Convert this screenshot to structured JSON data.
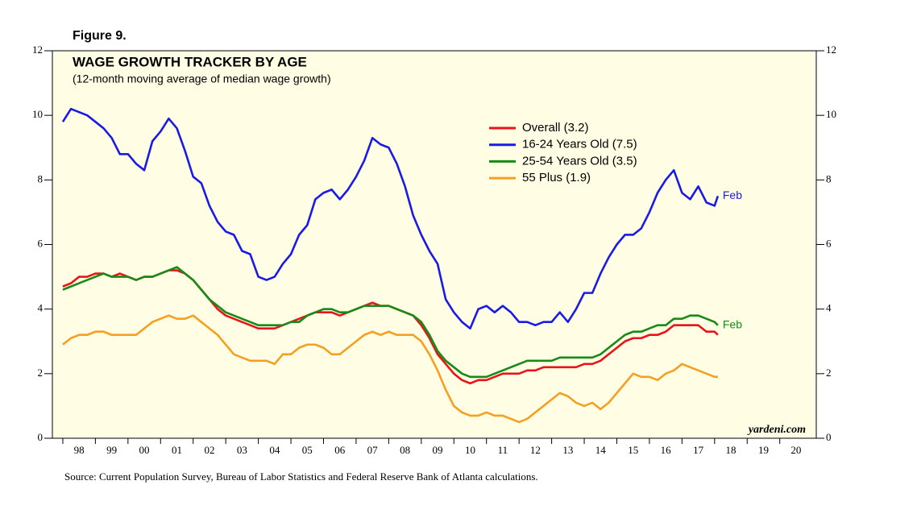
{
  "figure_label": "Figure 9.",
  "chart_data": {
    "type": "line",
    "title": "WAGE GROWTH TRACKER BY AGE",
    "subtitle": "(12-month moving average of median wage growth)",
    "watermark": "yardeni.com",
    "source": "Source: Current Population Survey, Bureau of Labor Statistics and Federal Reserve Bank of Atlanta calculations.",
    "background": "#fffde3",
    "xlim": [
      1997.68,
      2021.12
    ],
    "xticks": [
      {
        "value": 1998,
        "label": "98"
      },
      {
        "value": 1999,
        "label": "99"
      },
      {
        "value": 2000,
        "label": "00"
      },
      {
        "value": 2001,
        "label": "01"
      },
      {
        "value": 2002,
        "label": "02"
      },
      {
        "value": 2003,
        "label": "03"
      },
      {
        "value": 2004,
        "label": "04"
      },
      {
        "value": 2005,
        "label": "05"
      },
      {
        "value": 2006,
        "label": "06"
      },
      {
        "value": 2007,
        "label": "07"
      },
      {
        "value": 2008,
        "label": "08"
      },
      {
        "value": 2009,
        "label": "09"
      },
      {
        "value": 2010,
        "label": "10"
      },
      {
        "value": 2011,
        "label": "11"
      },
      {
        "value": 2012,
        "label": "12"
      },
      {
        "value": 2013,
        "label": "13"
      },
      {
        "value": 2014,
        "label": "14"
      },
      {
        "value": 2015,
        "label": "15"
      },
      {
        "value": 2016,
        "label": "16"
      },
      {
        "value": 2017,
        "label": "17"
      },
      {
        "value": 2018,
        "label": "18"
      },
      {
        "value": 2019,
        "label": "19"
      },
      {
        "value": 2020,
        "label": "20"
      }
    ],
    "ylim": [
      0,
      12
    ],
    "yticks": [
      0,
      2,
      4,
      6,
      8,
      10,
      12
    ],
    "y2lim": [
      0,
      12
    ],
    "y2ticks": [
      0,
      2,
      4,
      6,
      8,
      10,
      12
    ],
    "x": [
      1998,
      1998.25,
      1998.5,
      1998.75,
      1999,
      1999.25,
      1999.5,
      1999.75,
      2000,
      2000.25,
      2000.5,
      2000.75,
      2001,
      2001.25,
      2001.5,
      2001.75,
      2002,
      2002.25,
      2002.5,
      2002.75,
      2003,
      2003.25,
      2003.5,
      2003.75,
      2004,
      2004.25,
      2004.5,
      2004.75,
      2005,
      2005.25,
      2005.5,
      2005.75,
      2006,
      2006.25,
      2006.5,
      2006.75,
      2007,
      2007.25,
      2007.5,
      2007.75,
      2008,
      2008.25,
      2008.5,
      2008.75,
      2009,
      2009.25,
      2009.5,
      2009.75,
      2010,
      2010.25,
      2010.5,
      2010.75,
      2011,
      2011.25,
      2011.5,
      2011.75,
      2012,
      2012.25,
      2012.5,
      2012.75,
      2013,
      2013.25,
      2013.5,
      2013.75,
      2014,
      2014.25,
      2014.5,
      2014.75,
      2015,
      2015.25,
      2015.5,
      2015.75,
      2016,
      2016.25,
      2016.5,
      2016.75,
      2017,
      2017.25,
      2017.5,
      2017.75,
      2018,
      2018.1
    ],
    "series": [
      {
        "name": "Overall (3.2)",
        "color": "#e8141a",
        "values": [
          4.7,
          4.8,
          5.0,
          5.0,
          5.1,
          5.1,
          5.0,
          5.1,
          5.0,
          4.9,
          5.0,
          5.0,
          5.1,
          5.2,
          5.2,
          5.1,
          4.9,
          4.6,
          4.3,
          4.0,
          3.8,
          3.7,
          3.6,
          3.5,
          3.4,
          3.4,
          3.4,
          3.5,
          3.6,
          3.7,
          3.8,
          3.9,
          3.9,
          3.9,
          3.8,
          3.9,
          4.0,
          4.1,
          4.2,
          4.1,
          4.1,
          4.0,
          3.9,
          3.8,
          3.5,
          3.1,
          2.6,
          2.3,
          2.0,
          1.8,
          1.7,
          1.8,
          1.8,
          1.9,
          2.0,
          2.0,
          2.0,
          2.1,
          2.1,
          2.2,
          2.2,
          2.2,
          2.2,
          2.2,
          2.3,
          2.3,
          2.4,
          2.6,
          2.8,
          3.0,
          3.1,
          3.1,
          3.2,
          3.2,
          3.3,
          3.5,
          3.5,
          3.5,
          3.5,
          3.3,
          3.3,
          3.2
        ]
      },
      {
        "name": "16-24 Years Old (7.5)",
        "color": "#1a1ae6",
        "end_label": "Feb",
        "values": [
          9.8,
          10.2,
          10.1,
          10.0,
          9.8,
          9.6,
          9.3,
          8.8,
          8.8,
          8.5,
          8.3,
          9.2,
          9.5,
          9.9,
          9.6,
          8.9,
          8.1,
          7.9,
          7.2,
          6.7,
          6.4,
          6.3,
          5.8,
          5.7,
          5.0,
          4.9,
          5.0,
          5.4,
          5.7,
          6.3,
          6.6,
          7.4,
          7.6,
          7.7,
          7.4,
          7.7,
          8.1,
          8.6,
          9.3,
          9.1,
          9.0,
          8.5,
          7.8,
          6.9,
          6.3,
          5.8,
          5.4,
          4.3,
          3.9,
          3.6,
          3.4,
          4.0,
          4.1,
          3.9,
          4.1,
          3.9,
          3.6,
          3.6,
          3.5,
          3.6,
          3.6,
          3.9,
          3.6,
          4.0,
          4.5,
          4.5,
          5.1,
          5.6,
          6.0,
          6.3,
          6.3,
          6.5,
          7.0,
          7.6,
          8.0,
          8.3,
          7.6,
          7.4,
          7.8,
          7.3,
          7.2,
          7.5
        ]
      },
      {
        "name": "25-54 Years Old (3.5)",
        "color": "#178a17",
        "end_label": "Feb",
        "values": [
          4.6,
          4.7,
          4.8,
          4.9,
          5.0,
          5.1,
          5.0,
          5.0,
          5.0,
          4.9,
          5.0,
          5.0,
          5.1,
          5.2,
          5.3,
          5.1,
          4.9,
          4.6,
          4.3,
          4.1,
          3.9,
          3.8,
          3.7,
          3.6,
          3.5,
          3.5,
          3.5,
          3.5,
          3.6,
          3.6,
          3.8,
          3.9,
          4.0,
          4.0,
          3.9,
          3.9,
          4.0,
          4.1,
          4.1,
          4.1,
          4.1,
          4.0,
          3.9,
          3.8,
          3.6,
          3.2,
          2.7,
          2.4,
          2.2,
          2.0,
          1.9,
          1.9,
          1.9,
          2.0,
          2.1,
          2.2,
          2.3,
          2.4,
          2.4,
          2.4,
          2.4,
          2.5,
          2.5,
          2.5,
          2.5,
          2.5,
          2.6,
          2.8,
          3.0,
          3.2,
          3.3,
          3.3,
          3.4,
          3.5,
          3.5,
          3.7,
          3.7,
          3.8,
          3.8,
          3.7,
          3.6,
          3.5
        ]
      },
      {
        "name": "55 Plus (1.9)",
        "color": "#f5a023",
        "values": [
          2.9,
          3.1,
          3.2,
          3.2,
          3.3,
          3.3,
          3.2,
          3.2,
          3.2,
          3.2,
          3.4,
          3.6,
          3.7,
          3.8,
          3.7,
          3.7,
          3.8,
          3.6,
          3.4,
          3.2,
          2.9,
          2.6,
          2.5,
          2.4,
          2.4,
          2.4,
          2.3,
          2.6,
          2.6,
          2.8,
          2.9,
          2.9,
          2.8,
          2.6,
          2.6,
          2.8,
          3.0,
          3.2,
          3.3,
          3.2,
          3.3,
          3.2,
          3.2,
          3.2,
          3.0,
          2.6,
          2.1,
          1.5,
          1.0,
          0.8,
          0.7,
          0.7,
          0.8,
          0.7,
          0.7,
          0.6,
          0.5,
          0.6,
          0.8,
          1.0,
          1.2,
          1.4,
          1.3,
          1.1,
          1.0,
          1.1,
          0.9,
          1.1,
          1.4,
          1.7,
          2.0,
          1.9,
          1.9,
          1.8,
          2.0,
          2.1,
          2.3,
          2.2,
          2.1,
          2.0,
          1.9,
          1.9
        ]
      }
    ]
  }
}
